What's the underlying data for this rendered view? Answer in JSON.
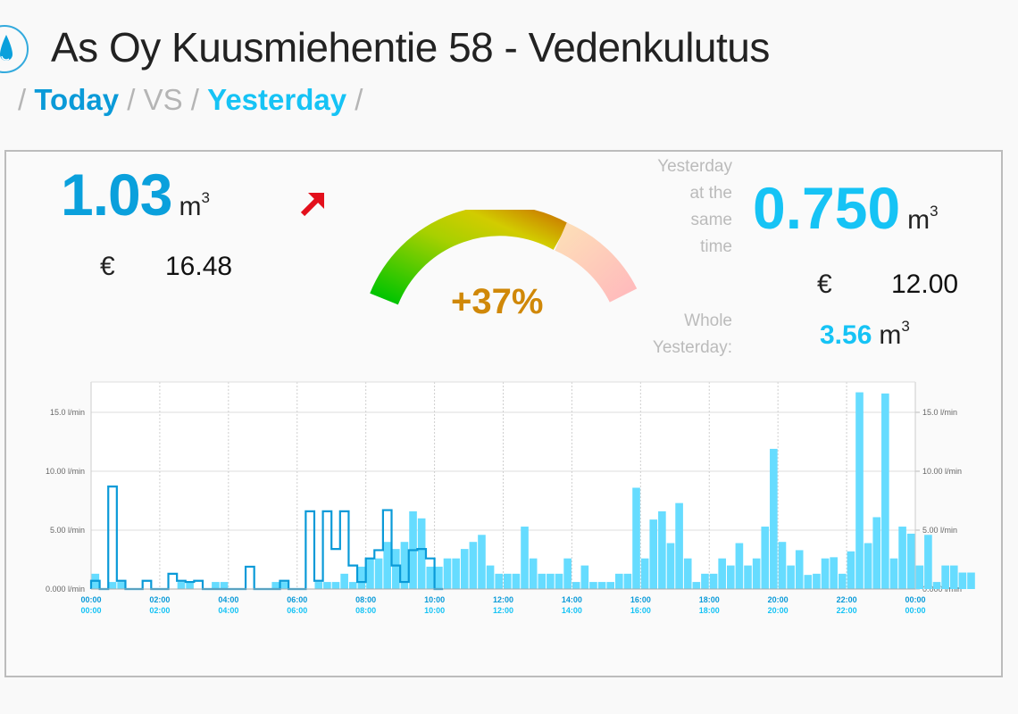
{
  "header": {
    "title": "As Oy Kuusmiehentie 58 - Vedenkulutus",
    "icon": "water-drop-icon",
    "breadcrumb": {
      "sep": "/",
      "today": "Today",
      "vs": "VS",
      "yesterday": "Yesterday"
    }
  },
  "today": {
    "volume": "1.03",
    "unit": "m",
    "unit_exp": "3",
    "currency": "€",
    "cost": "16.48",
    "trend_icon": "arrow-up-right-icon",
    "trend_color": "#e3101c"
  },
  "gauge": {
    "change": "+37%",
    "change_color": "#d08808"
  },
  "yesterday": {
    "label_lines": [
      "Yesterday",
      "at the",
      "same",
      "time"
    ],
    "volume": "0.750",
    "unit": "m",
    "unit_exp": "3",
    "currency": "€",
    "cost": "12.00",
    "whole_label_lines": [
      "Whole",
      "Yesterday:"
    ],
    "whole_volume": "3.56",
    "whole_unit": "m",
    "whole_unit_exp": "3"
  },
  "colors": {
    "today": "#0aa0dc",
    "yesterday": "#16c3f5",
    "bar_fill": "#66dcff",
    "outline": "#0a9ad8"
  },
  "chart_data": {
    "type": "bar",
    "title": "",
    "xlabel": "",
    "ylabel": "l/min",
    "ylim": [
      0,
      17.5
    ],
    "y_ticks": [
      "0.000 l/min",
      "5.00 l/min",
      "10.00 l/min",
      "15.0 l/min"
    ],
    "y_tick_values": [
      0,
      5,
      10,
      15
    ],
    "x_ticks": [
      "00:00",
      "02:00",
      "04:00",
      "06:00",
      "08:00",
      "10:00",
      "12:00",
      "14:00",
      "16:00",
      "18:00",
      "20:00",
      "22:00",
      "00:00"
    ],
    "interval_minutes": 15,
    "grid": true,
    "series": [
      {
        "name": "Yesterday (filled)",
        "style": "filled",
        "values": [
          1.3,
          0,
          0.6,
          0.6,
          0,
          0,
          0,
          0,
          0,
          0,
          0.6,
          0.6,
          0,
          0,
          0.6,
          0.6,
          0,
          0,
          0,
          0,
          0,
          0.6,
          0.6,
          0,
          0,
          0,
          0.6,
          0.6,
          0.6,
          1.3,
          0.6,
          1.9,
          2.6,
          2.6,
          4.0,
          3.4,
          4.0,
          6.6,
          6.0,
          1.9,
          1.9,
          2.6,
          2.6,
          3.4,
          4.0,
          4.6,
          2.0,
          1.3,
          1.3,
          1.3,
          5.3,
          2.6,
          1.3,
          1.3,
          1.3,
          2.6,
          0.6,
          2.0,
          0.6,
          0.6,
          0.6,
          1.3,
          1.3,
          8.6,
          2.6,
          5.9,
          6.6,
          3.9,
          7.3,
          2.6,
          0.6,
          1.3,
          1.3,
          2.6,
          2.0,
          3.9,
          2.0,
          2.6,
          5.3,
          11.9,
          4.0,
          2.0,
          3.3,
          1.2,
          1.3,
          2.6,
          2.7,
          1.3,
          3.2,
          16.7,
          3.9,
          6.1,
          16.6,
          2.6,
          5.3,
          4.7,
          2.0,
          4.6,
          0.6,
          2.0,
          2.0,
          1.4,
          1.4,
          0
        ]
      },
      {
        "name": "Today (outline)",
        "style": "outline",
        "values": [
          0.7,
          0,
          8.7,
          0.7,
          0,
          0,
          0.7,
          0,
          0,
          1.3,
          0.7,
          0.6,
          0.7,
          0,
          0,
          0,
          0,
          0,
          1.9,
          0,
          0,
          0,
          0.7,
          0,
          0,
          6.6,
          0.7,
          6.6,
          3.4,
          6.6,
          2.0,
          0.6,
          2.6,
          3.3,
          6.7,
          2.0,
          0.6,
          3.3,
          3.4,
          2.6,
          0
        ]
      }
    ]
  }
}
